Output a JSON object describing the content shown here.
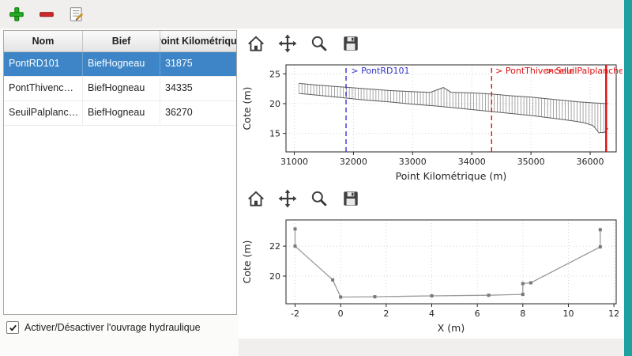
{
  "colors": {
    "selection": "#3d85c6",
    "teal_strip": "#1fa0a0",
    "toolbar_bg": "#f0efed"
  },
  "app_toolbar": {
    "buttons": [
      {
        "name": "add-structure",
        "icon": "plus"
      },
      {
        "name": "remove-structure",
        "icon": "minus"
      },
      {
        "name": "edit-structure",
        "icon": "edit"
      }
    ]
  },
  "plot_toolbar": {
    "buttons": [
      {
        "name": "home",
        "icon": "home"
      },
      {
        "name": "pan",
        "icon": "pan"
      },
      {
        "name": "zoom",
        "icon": "zoom"
      },
      {
        "name": "save",
        "icon": "save"
      }
    ]
  },
  "table": {
    "headers": [
      "Nom",
      "Bief",
      "Point Kilométrique"
    ],
    "rows": [
      {
        "cells": [
          "PontRD101",
          "BiefHogneau",
          "31875"
        ],
        "selected": true
      },
      {
        "cells": [
          "PontThivenc…",
          "BiefHogneau",
          "34335"
        ],
        "selected": false
      },
      {
        "cells": [
          "SeuilPalplanc…",
          "BiefHogneau",
          "36270"
        ],
        "selected": false
      }
    ]
  },
  "checkbox": {
    "label": "Activer/Désactiver l'ouvrage hydraulique",
    "checked": true
  },
  "chart_data": [
    {
      "type": "line",
      "name": "longitudinal-profile",
      "title": "",
      "xlabel": "Point Kilométrique (m)",
      "ylabel": "Cote (m)",
      "xlim": [
        30860,
        36440
      ],
      "ylim": [
        11.9,
        26.5
      ],
      "xticks": [
        31000,
        32000,
        33000,
        34000,
        35000,
        36000
      ],
      "yticks": [
        15,
        20,
        25
      ],
      "grid": "dotted",
      "m": {
        "l": 58,
        "r": 8,
        "t": 8,
        "b": 40
      },
      "hatch": {
        "from": 31080,
        "to": 36300,
        "step": 50
      },
      "series": [
        {
          "name": "crest",
          "points": [
            [
              31080,
              23.4
            ],
            [
              31400,
              23.1
            ],
            [
              31800,
              22.8
            ],
            [
              32200,
              22.5
            ],
            [
              32600,
              22.2
            ],
            [
              33000,
              22.0
            ],
            [
              33300,
              21.9
            ],
            [
              33520,
              22.7
            ],
            [
              33650,
              21.9
            ],
            [
              34000,
              21.8
            ],
            [
              34335,
              21.6
            ],
            [
              34700,
              21.3
            ],
            [
              35000,
              21.1
            ],
            [
              35400,
              20.7
            ],
            [
              35800,
              20.3
            ],
            [
              36100,
              20.1
            ],
            [
              36300,
              20.0
            ]
          ]
        },
        {
          "name": "bed",
          "points": [
            [
              31080,
              21.7
            ],
            [
              31400,
              21.4
            ],
            [
              31800,
              21.0
            ],
            [
              32200,
              20.6
            ],
            [
              32600,
              20.3
            ],
            [
              33000,
              19.9
            ],
            [
              33400,
              19.6
            ],
            [
              33800,
              19.2
            ],
            [
              34200,
              18.8
            ],
            [
              34600,
              18.4
            ],
            [
              35000,
              18.0
            ],
            [
              35400,
              17.5
            ],
            [
              35700,
              17.1
            ],
            [
              35900,
              16.8
            ],
            [
              36050,
              16.3
            ],
            [
              36150,
              15.1
            ],
            [
              36250,
              15.2
            ],
            [
              36300,
              15.9
            ]
          ]
        }
      ],
      "annotations": [
        {
          "x": 31875,
          "label": "> PontRD101",
          "color": "#3333cc",
          "dash": "6 4",
          "width": 1.4,
          "label_x": 31960
        },
        {
          "x": 34335,
          "label": "> PontThivencelle",
          "color": "#e01010",
          "dash": "6 4",
          "width": 1.4,
          "label_x": 34400
        },
        {
          "x": 36270,
          "label": "> SeuilPalplanches",
          "color": "#e01010",
          "dash": "",
          "width": 2.4,
          "label_x": 35250
        }
      ]
    },
    {
      "type": "line",
      "name": "cross-section",
      "title": "",
      "xlabel": "X (m)",
      "ylabel": "Cote (m)",
      "xlim": [
        -2.4,
        12.1
      ],
      "ylim": [
        18.15,
        23.75
      ],
      "xticks": [
        -2,
        0,
        2,
        4,
        6,
        8,
        10,
        12
      ],
      "yticks": [
        20,
        22
      ],
      "grid": "dotted",
      "m": {
        "l": 58,
        "r": 8,
        "t": 8,
        "b": 40
      },
      "points": [
        [
          -2,
          23.15
        ],
        [
          -2,
          22.0
        ],
        [
          -0.35,
          19.75
        ],
        [
          0,
          18.6
        ],
        [
          1.5,
          18.62
        ],
        [
          4,
          18.68
        ],
        [
          6.5,
          18.72
        ],
        [
          8,
          18.78
        ],
        [
          8,
          19.5
        ],
        [
          8.35,
          19.55
        ],
        [
          11.4,
          21.95
        ],
        [
          11.4,
          23.1
        ]
      ]
    }
  ]
}
